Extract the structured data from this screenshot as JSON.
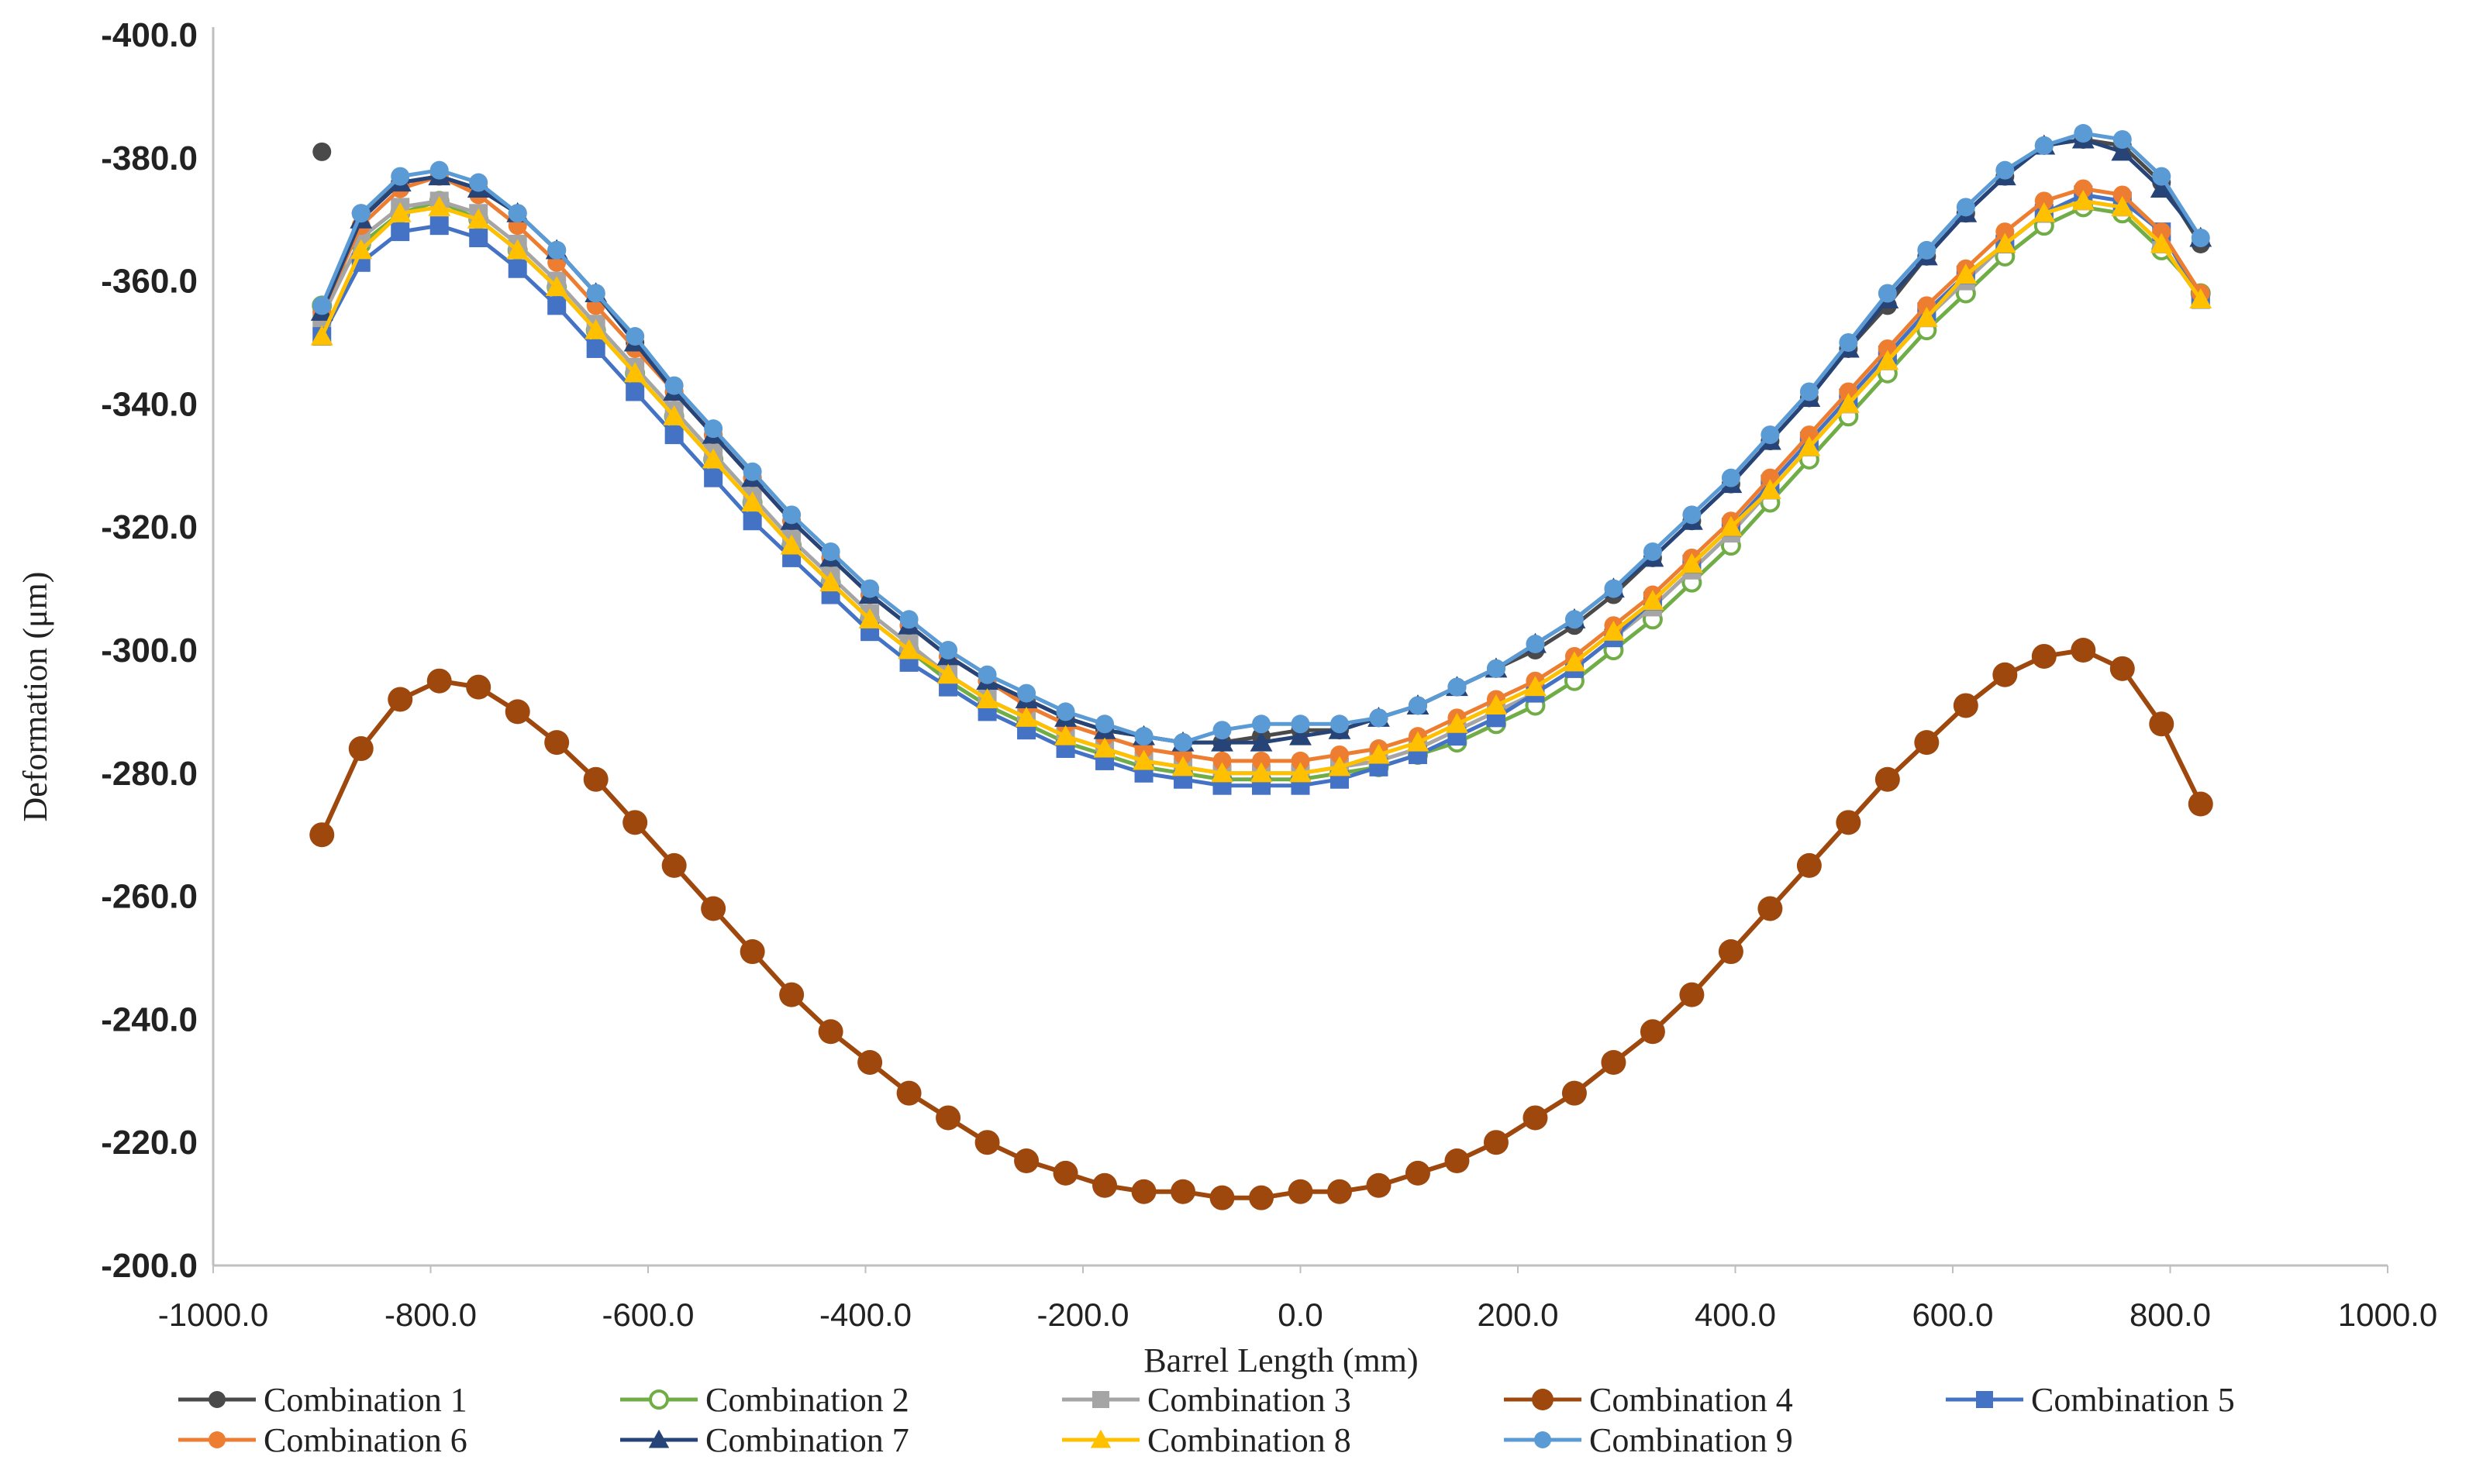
{
  "chart_data": {
    "type": "line",
    "title": "",
    "xlabel": "Barrel Length (mm)",
    "ylabel": "Deformation  (μm)",
    "xlim": [
      -1000,
      1000
    ],
    "ylim": [
      -200,
      -400
    ],
    "y_axis_reversed": true,
    "x_ticks": [
      "-1000.0",
      "-800.0",
      "-600.0",
      "-400.0",
      "-200.0",
      "0.0",
      "200.0",
      "400.0",
      "600.0",
      "800.0",
      "1000.0"
    ],
    "y_ticks": [
      "-200.0",
      "-220.0",
      "-240.0",
      "-260.0",
      "-280.0",
      "-300.0",
      "-320.0",
      "-340.0",
      "-360.0",
      "-380.0",
      "-400.0"
    ],
    "grid": false,
    "legend_position": "bottom",
    "x": [
      -900,
      -864,
      -828,
      -792,
      -756,
      -720,
      -684,
      -648,
      -612,
      -576,
      -540,
      -504,
      -468,
      -432,
      -396,
      -360,
      -324,
      -288,
      -252,
      -216,
      -180,
      -144,
      -108,
      -72,
      -36,
      0,
      36,
      72,
      108,
      144,
      180,
      216,
      252,
      288,
      324,
      360,
      396,
      432,
      468,
      504,
      540,
      576,
      612,
      648,
      684,
      720,
      756,
      792,
      828
    ],
    "series": [
      {
        "name": "Combination 1",
        "color": "#4a4a4a",
        "marker": "circle",
        "values": [
          -381,
          -371,
          -376,
          -377,
          -375,
          -371,
          -365,
          -358,
          -350,
          -342,
          -335,
          -328,
          -321,
          -315,
          -309,
          -304,
          -299,
          -295,
          -292,
          -289,
          -287,
          -286,
          -285,
          -285,
          -286,
          -287,
          -287,
          -289,
          -291,
          -294,
          -297,
          -300,
          -304,
          -309,
          -315,
          -321,
          -327,
          -334,
          -341,
          -349,
          -356,
          -364,
          -371,
          -377,
          -382,
          -383,
          -382,
          -376,
          -366
        ]
      },
      {
        "name": "Combination 2",
        "color": "#70ad47",
        "marker": "circle-open",
        "values": [
          -356,
          -366,
          -371,
          -373,
          -370,
          -365,
          -359,
          -352,
          -345,
          -338,
          -331,
          -324,
          -317,
          -311,
          -305,
          -300,
          -295,
          -291,
          -288,
          -285,
          -283,
          -281,
          -280,
          -279,
          -279,
          -279,
          -280,
          -281,
          -283,
          -285,
          -288,
          -291,
          -295,
          -300,
          -305,
          -311,
          -317,
          -324,
          -331,
          -338,
          -345,
          -352,
          -358,
          -364,
          -369,
          -372,
          -371,
          -365,
          -358
        ]
      },
      {
        "name": "Combination 3",
        "color": "#a5a5a5",
        "marker": "square",
        "values": [
          -354,
          -367,
          -372,
          -373,
          -371,
          -366,
          -360,
          -353,
          -346,
          -339,
          -332,
          -325,
          -318,
          -312,
          -306,
          -301,
          -296,
          -292,
          -289,
          -286,
          -284,
          -282,
          -281,
          -280,
          -280,
          -280,
          -281,
          -282,
          -284,
          -287,
          -290,
          -293,
          -297,
          -302,
          -307,
          -313,
          -319,
          -326,
          -333,
          -340,
          -347,
          -354,
          -360,
          -366,
          -371,
          -373,
          -372,
          -366,
          -357
        ]
      },
      {
        "name": "Combination 4",
        "color": "#9e480e",
        "marker": "circle",
        "values": [
          -270,
          -284,
          -292,
          -295,
          -294,
          -290,
          -285,
          -279,
          -272,
          -265,
          -258,
          -251,
          -244,
          -238,
          -233,
          -228,
          -224,
          -220,
          -217,
          -215,
          -213,
          -212,
          -212,
          -211,
          -211,
          -212,
          -212,
          -213,
          -215,
          -217,
          -220,
          -224,
          -228,
          -233,
          -238,
          -244,
          -251,
          -258,
          -265,
          -272,
          -279,
          -285,
          -291,
          -296,
          -299,
          -300,
          -297,
          -288,
          -275
        ]
      },
      {
        "name": "Combination 5",
        "color": "#4472c4",
        "marker": "square",
        "values": [
          -351,
          -363,
          -368,
          -369,
          -367,
          -362,
          -356,
          -349,
          -342,
          -335,
          -328,
          -321,
          -315,
          -309,
          -303,
          -298,
          -294,
          -290,
          -287,
          -284,
          -282,
          -280,
          -279,
          -278,
          -278,
          -278,
          -279,
          -281,
          -283,
          -286,
          -289,
          -293,
          -297,
          -302,
          -308,
          -314,
          -320,
          -327,
          -334,
          -341,
          -348,
          -355,
          -361,
          -366,
          -371,
          -374,
          -373,
          -368,
          -357
        ]
      },
      {
        "name": "Combination 6",
        "color": "#ed7d31",
        "marker": "circle",
        "values": [
          -355,
          -369,
          -375,
          -377,
          -374,
          -369,
          -363,
          -356,
          -349,
          -342,
          -335,
          -328,
          -321,
          -315,
          -309,
          -304,
          -299,
          -295,
          -291,
          -288,
          -286,
          -284,
          -283,
          -282,
          -282,
          -282,
          -283,
          -284,
          -286,
          -289,
          -292,
          -295,
          -299,
          -304,
          -309,
          -315,
          -321,
          -328,
          -335,
          -342,
          -349,
          -356,
          -362,
          -368,
          -373,
          -375,
          -374,
          -368,
          -358
        ]
      },
      {
        "name": "Combination 7",
        "color": "#264478",
        "marker": "triangle",
        "values": [
          -355,
          -370,
          -376,
          -377,
          -375,
          -371,
          -365,
          -358,
          -350,
          -342,
          -335,
          -328,
          -321,
          -315,
          -309,
          -304,
          -299,
          -295,
          -292,
          -289,
          -287,
          -286,
          -285,
          -285,
          -285,
          -286,
          -287,
          -289,
          -291,
          -294,
          -297,
          -301,
          -305,
          -310,
          -315,
          -321,
          -327,
          -334,
          -341,
          -349,
          -357,
          -364,
          -371,
          -377,
          -382,
          -383,
          -381,
          -375,
          -367
        ]
      },
      {
        "name": "Combination 8",
        "color": "#ffc000",
        "marker": "triangle",
        "values": [
          -351,
          -365,
          -371,
          -372,
          -370,
          -365,
          -359,
          -352,
          -345,
          -338,
          -331,
          -324,
          -317,
          -311,
          -305,
          -300,
          -296,
          -292,
          -289,
          -286,
          -284,
          -282,
          -281,
          -280,
          -280,
          -280,
          -281,
          -283,
          -285,
          -288,
          -291,
          -294,
          -298,
          -303,
          -308,
          -314,
          -320,
          -326,
          -333,
          -340,
          -347,
          -354,
          -361,
          -366,
          -371,
          -373,
          -372,
          -366,
          -357
        ]
      },
      {
        "name": "Combination 9",
        "color": "#5b9bd5",
        "marker": "circle",
        "values": [
          -356,
          -371,
          -377,
          -378,
          -376,
          -371,
          -365,
          -358,
          -351,
          -343,
          -336,
          -329,
          -322,
          -316,
          -310,
          -305,
          -300,
          -296,
          -293,
          -290,
          -288,
          -286,
          -285,
          -287,
          -288,
          -288,
          -288,
          -289,
          -291,
          -294,
          -297,
          -301,
          -305,
          -310,
          -316,
          -322,
          -328,
          -335,
          -342,
          -350,
          -358,
          -365,
          -372,
          -378,
          -382,
          -384,
          -383,
          -377,
          -367
        ]
      }
    ]
  }
}
